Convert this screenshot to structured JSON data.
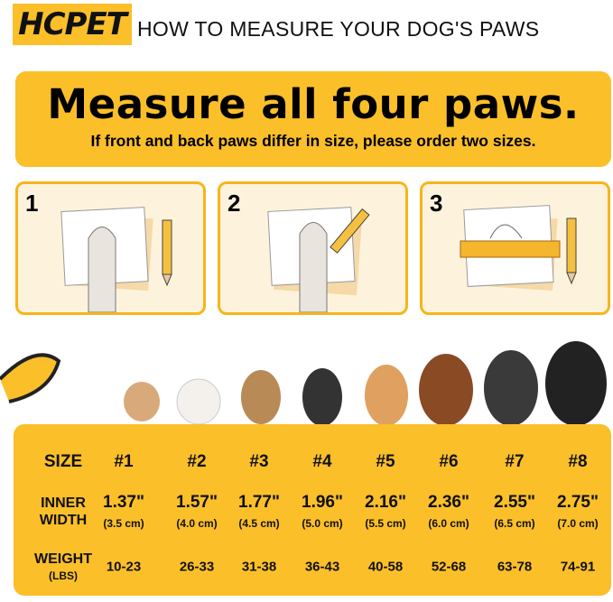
{
  "header": {
    "brand": "HCPET",
    "title": "HOW TO MEASURE YOUR DOG'S PAWS"
  },
  "banner": {
    "heading": "Measure all four paws.",
    "note": "If front and back paws differ in size, please order two sizes."
  },
  "steps": [
    {
      "number": "1"
    },
    {
      "number": "2"
    },
    {
      "number": "3"
    }
  ],
  "table": {
    "row_labels": {
      "size": "SIZE",
      "inner_width": "INNER WIDTH",
      "weight": "WEIGHT",
      "weight_unit": "(LBS)"
    },
    "columns": [
      {
        "size": "#1",
        "width_in": "1.37\"",
        "width_cm": "(3.5 cm)",
        "weight": "10-23"
      },
      {
        "size": "#2",
        "width_in": "1.57\"",
        "width_cm": "(4.0 cm)",
        "weight": "26-33"
      },
      {
        "size": "#3",
        "width_in": "1.77\"",
        "width_cm": "(4.5 cm)",
        "weight": "31-38"
      },
      {
        "size": "#4",
        "width_in": "1.96\"",
        "width_cm": "(5.0 cm)",
        "weight": "36-43"
      },
      {
        "size": "#5",
        "width_in": "2.16\"",
        "width_cm": "(5.5 cm)",
        "weight": "40-58"
      },
      {
        "size": "#6",
        "width_in": "2.36\"",
        "width_cm": "(6.0 cm)",
        "weight": "52-68"
      },
      {
        "size": "#7",
        "width_in": "2.55\"",
        "width_cm": "(6.5 cm)",
        "weight": "63-78"
      },
      {
        "size": "#8",
        "width_in": "2.75\"",
        "width_cm": "(7.0 cm)",
        "weight": "74-91"
      }
    ]
  }
}
